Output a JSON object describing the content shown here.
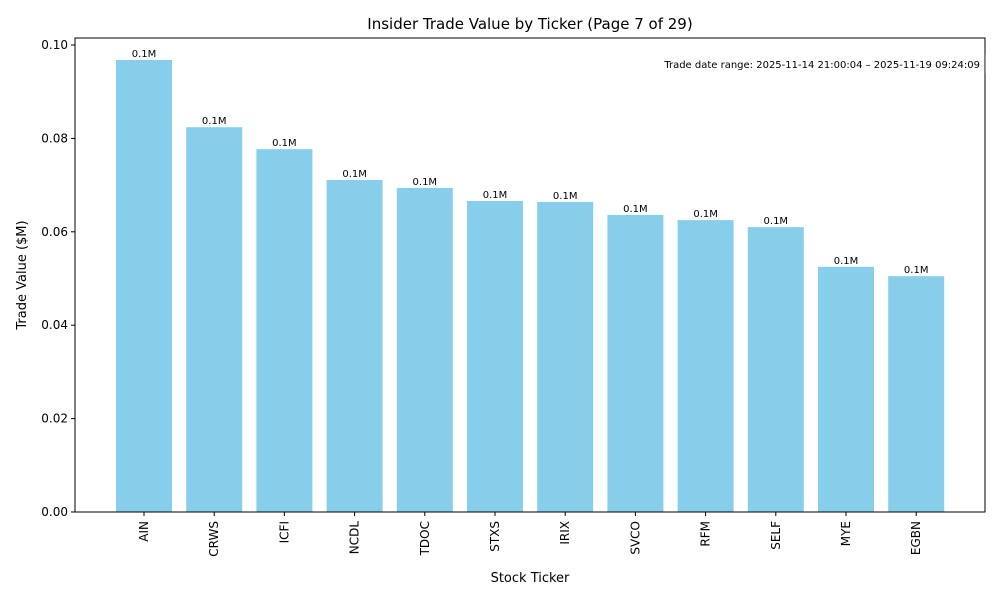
{
  "chart_data": {
    "type": "bar",
    "title": "Insider Trade Value by Ticker (Page 7 of 29)",
    "xlabel": "Stock Ticker",
    "ylabel": "Trade Value ($M)",
    "categories": [
      "AIN",
      "CRWS",
      "ICFI",
      "NCDL",
      "TDOC",
      "STXS",
      "IRIX",
      "SVCO",
      "RFM",
      "SELF",
      "MYE",
      "EGBN"
    ],
    "values": [
      0.0968,
      0.0824,
      0.0777,
      0.0711,
      0.0694,
      0.0666,
      0.0664,
      0.0636,
      0.0625,
      0.061,
      0.0525,
      0.0505
    ],
    "data_labels": [
      "0.1M",
      "0.1M",
      "0.1M",
      "0.1M",
      "0.1M",
      "0.1M",
      "0.1M",
      "0.1M",
      "0.1M",
      "0.1M",
      "0.1M",
      "0.1M"
    ],
    "ylim": [
      0,
      0.1015
    ],
    "yticks": [
      0.0,
      0.02,
      0.04,
      0.06,
      0.08,
      0.1
    ],
    "ytick_labels": [
      "0.00",
      "0.02",
      "0.04",
      "0.06",
      "0.08",
      "0.10"
    ],
    "bar_color": "#87CEEB",
    "grid": false,
    "annotation": "Trade date range: 2025-11-14 21:00:04 – 2025-11-19 09:24:09",
    "annotation_placement": "top-right"
  }
}
